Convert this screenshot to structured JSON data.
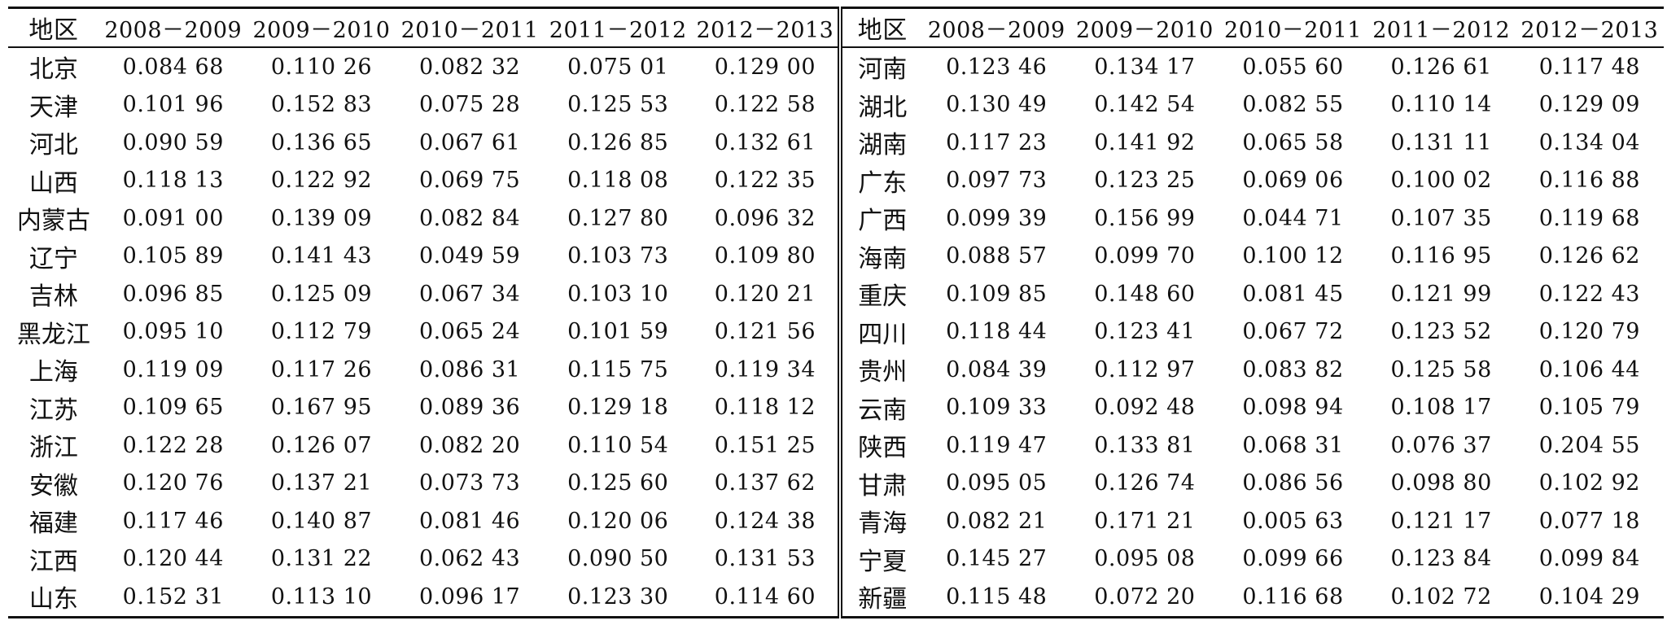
{
  "table": {
    "header": {
      "left": [
        "地区",
        "2008－2009",
        "2009－2010",
        "2010－2011",
        "2011－2012",
        "2012－2013"
      ],
      "right": [
        "地区",
        "2008－2009",
        "2009－2010",
        "2010－2011",
        "2011－2012",
        "2012－2013"
      ]
    },
    "rows": [
      {
        "left": [
          "北京",
          "0.084 68",
          "0.110 26",
          "0.082 32",
          "0.075 01",
          "0.129 00"
        ],
        "right": [
          "河南",
          "0.123 46",
          "0.134 17",
          "0.055 60",
          "0.126 61",
          "0.117 48"
        ]
      },
      {
        "left": [
          "天津",
          "0.101 96",
          "0.152 83",
          "0.075 28",
          "0.125 53",
          "0.122 58"
        ],
        "right": [
          "湖北",
          "0.130 49",
          "0.142 54",
          "0.082 55",
          "0.110 14",
          "0.129 09"
        ]
      },
      {
        "left": [
          "河北",
          "0.090 59",
          "0.136 65",
          "0.067 61",
          "0.126 85",
          "0.132 61"
        ],
        "right": [
          "湖南",
          "0.117 23",
          "0.141 92",
          "0.065 58",
          "0.131 11",
          "0.134 04"
        ]
      },
      {
        "left": [
          "山西",
          "0.118 13",
          "0.122 92",
          "0.069 75",
          "0.118 08",
          "0.122 35"
        ],
        "right": [
          "广东",
          "0.097 73",
          "0.123 25",
          "0.069 06",
          "0.100 02",
          "0.116 88"
        ]
      },
      {
        "left": [
          "内蒙古",
          "0.091 00",
          "0.139 09",
          "0.082 84",
          "0.127 80",
          "0.096 32"
        ],
        "right": [
          "广西",
          "0.099 39",
          "0.156 99",
          "0.044 71",
          "0.107 35",
          "0.119 68"
        ]
      },
      {
        "left": [
          "辽宁",
          "0.105 89",
          "0.141 43",
          "0.049 59",
          "0.103 73",
          "0.109 80"
        ],
        "right": [
          "海南",
          "0.088 57",
          "0.099 70",
          "0.100 12",
          "0.116 95",
          "0.126 62"
        ]
      },
      {
        "left": [
          "吉林",
          "0.096 85",
          "0.125 09",
          "0.067 34",
          "0.103 10",
          "0.120 21"
        ],
        "right": [
          "重庆",
          "0.109 85",
          "0.148 60",
          "0.081 45",
          "0.121 99",
          "0.122 43"
        ]
      },
      {
        "left": [
          "黑龙江",
          "0.095 10",
          "0.112 79",
          "0.065 24",
          "0.101 59",
          "0.121 56"
        ],
        "right": [
          "四川",
          "0.118 44",
          "0.123 41",
          "0.067 72",
          "0.123 52",
          "0.120 79"
        ]
      },
      {
        "left": [
          "上海",
          "0.119 09",
          "0.117 26",
          "0.086 31",
          "0.115 75",
          "0.119 34"
        ],
        "right": [
          "贵州",
          "0.084 39",
          "0.112 97",
          "0.083 82",
          "0.125 58",
          "0.106 44"
        ]
      },
      {
        "left": [
          "江苏",
          "0.109 65",
          "0.167 95",
          "0.089 36",
          "0.129 18",
          "0.118 12"
        ],
        "right": [
          "云南",
          "0.109 33",
          "0.092 48",
          "0.098 94",
          "0.108 17",
          "0.105 79"
        ]
      },
      {
        "left": [
          "浙江",
          "0.122 28",
          "0.126 07",
          "0.082 20",
          "0.110 54",
          "0.151 25"
        ],
        "right": [
          "陕西",
          "0.119 47",
          "0.133 81",
          "0.068 31",
          "0.076 37",
          "0.204 55"
        ]
      },
      {
        "left": [
          "安徽",
          "0.120 76",
          "0.137 21",
          "0.073 73",
          "0.125 60",
          "0.137 62"
        ],
        "right": [
          "甘肃",
          "0.095 05",
          "0.126 74",
          "0.086 56",
          "0.098 80",
          "0.102 92"
        ]
      },
      {
        "left": [
          "福建",
          "0.117 46",
          "0.140 87",
          "0.081 46",
          "0.120 06",
          "0.124 38"
        ],
        "right": [
          "青海",
          "0.082 21",
          "0.171 21",
          "0.005 63",
          "0.121 17",
          "0.077 18"
        ]
      },
      {
        "left": [
          "江西",
          "0.120 44",
          "0.131 22",
          "0.062 43",
          "0.090 50",
          "0.131 53"
        ],
        "right": [
          "宁夏",
          "0.145 27",
          "0.095 08",
          "0.099 66",
          "0.123 84",
          "0.099 84"
        ]
      },
      {
        "left": [
          "山东",
          "0.152 31",
          "0.113 10",
          "0.096 17",
          "0.123 30",
          "0.114 60"
        ],
        "right": [
          "新疆",
          "0.115 48",
          "0.072 20",
          "0.116 68",
          "0.102 72",
          "0.104 29"
        ]
      }
    ]
  }
}
